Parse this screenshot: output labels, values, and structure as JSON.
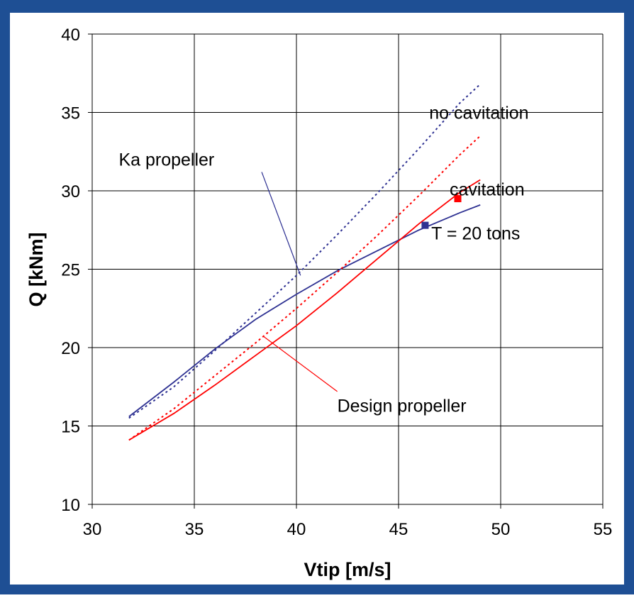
{
  "colors": {
    "frame": "#1e4f94",
    "plot_background": "#ffffff",
    "grid": "#000000",
    "blue": "#2e3192",
    "red": "#ff0000"
  },
  "chart_data": {
    "type": "line",
    "title": "",
    "xlabel": "Vtip [m/s]",
    "ylabel": "Q [kNm]",
    "xlim": [
      30,
      55
    ],
    "ylim": [
      10,
      40
    ],
    "x_ticks": [
      30,
      35,
      40,
      45,
      50,
      55
    ],
    "y_ticks": [
      10,
      15,
      20,
      25,
      30,
      35,
      40
    ],
    "x_tick_labels": [
      "30",
      "35",
      "40",
      "45",
      "50",
      "55"
    ],
    "y_tick_labels": [
      "10",
      "15",
      "20",
      "25",
      "30",
      "35",
      "40"
    ],
    "grid": true,
    "series": [
      {
        "id": "ka_cavitation",
        "color": "#2e3192",
        "style": "solid",
        "x": [
          31.8,
          34,
          36,
          38,
          40,
          42,
          44,
          46,
          48,
          49
        ],
        "y": [
          15.6,
          17.8,
          19.9,
          21.8,
          23.4,
          24.9,
          26.2,
          27.5,
          28.6,
          29.1
        ]
      },
      {
        "id": "ka_no_cavitation",
        "color": "#2e3192",
        "style": "dotted",
        "x": [
          31.8,
          34,
          36,
          38,
          40,
          42,
          44,
          46,
          48,
          49
        ],
        "y": [
          15.5,
          17.5,
          19.8,
          22.2,
          24.6,
          27.2,
          29.9,
          32.7,
          35.6,
          36.8
        ]
      },
      {
        "id": "design_cavitation",
        "color": "#ff0000",
        "style": "solid",
        "x": [
          31.8,
          34,
          36,
          38,
          40,
          42,
          44,
          46,
          48,
          49
        ],
        "y": [
          14.1,
          15.8,
          17.6,
          19.5,
          21.4,
          23.5,
          25.7,
          27.9,
          29.9,
          30.7
        ]
      },
      {
        "id": "design_no_cavitation",
        "color": "#ff0000",
        "style": "dotted",
        "x": [
          31.8,
          34,
          36,
          38,
          40,
          42,
          44,
          46,
          48,
          49
        ],
        "y": [
          14.1,
          16.1,
          18.2,
          20.3,
          22.5,
          24.8,
          27.2,
          29.7,
          32.3,
          33.5
        ]
      }
    ],
    "markers": [
      {
        "id": "ka_point",
        "x": 46.3,
        "y": 27.8,
        "color": "#2e3192"
      },
      {
        "id": "design_point",
        "x": 47.9,
        "y": 29.5,
        "color": "#ff0000"
      }
    ],
    "annotations": [
      {
        "id": "no_cavitation",
        "text": "no cavitation",
        "x": 46.5,
        "y": 34.6
      },
      {
        "id": "cavitation",
        "text": "cavitation",
        "x": 47.5,
        "y": 29.7
      },
      {
        "id": "t_20_tons",
        "text": "T = 20 tons",
        "x": 46.6,
        "y": 26.9
      },
      {
        "id": "ka_propeller",
        "text": "Ka propeller",
        "x": 31.3,
        "y": 31.6,
        "leader": [
          [
            38.3,
            31.2
          ],
          [
            40.2,
            24.6
          ]
        ]
      },
      {
        "id": "design_propeller",
        "text": "Design propeller",
        "x": 42.0,
        "y": 15.9,
        "leader": [
          [
            42.0,
            17.2
          ],
          [
            38.4,
            20.7
          ]
        ]
      }
    ]
  }
}
